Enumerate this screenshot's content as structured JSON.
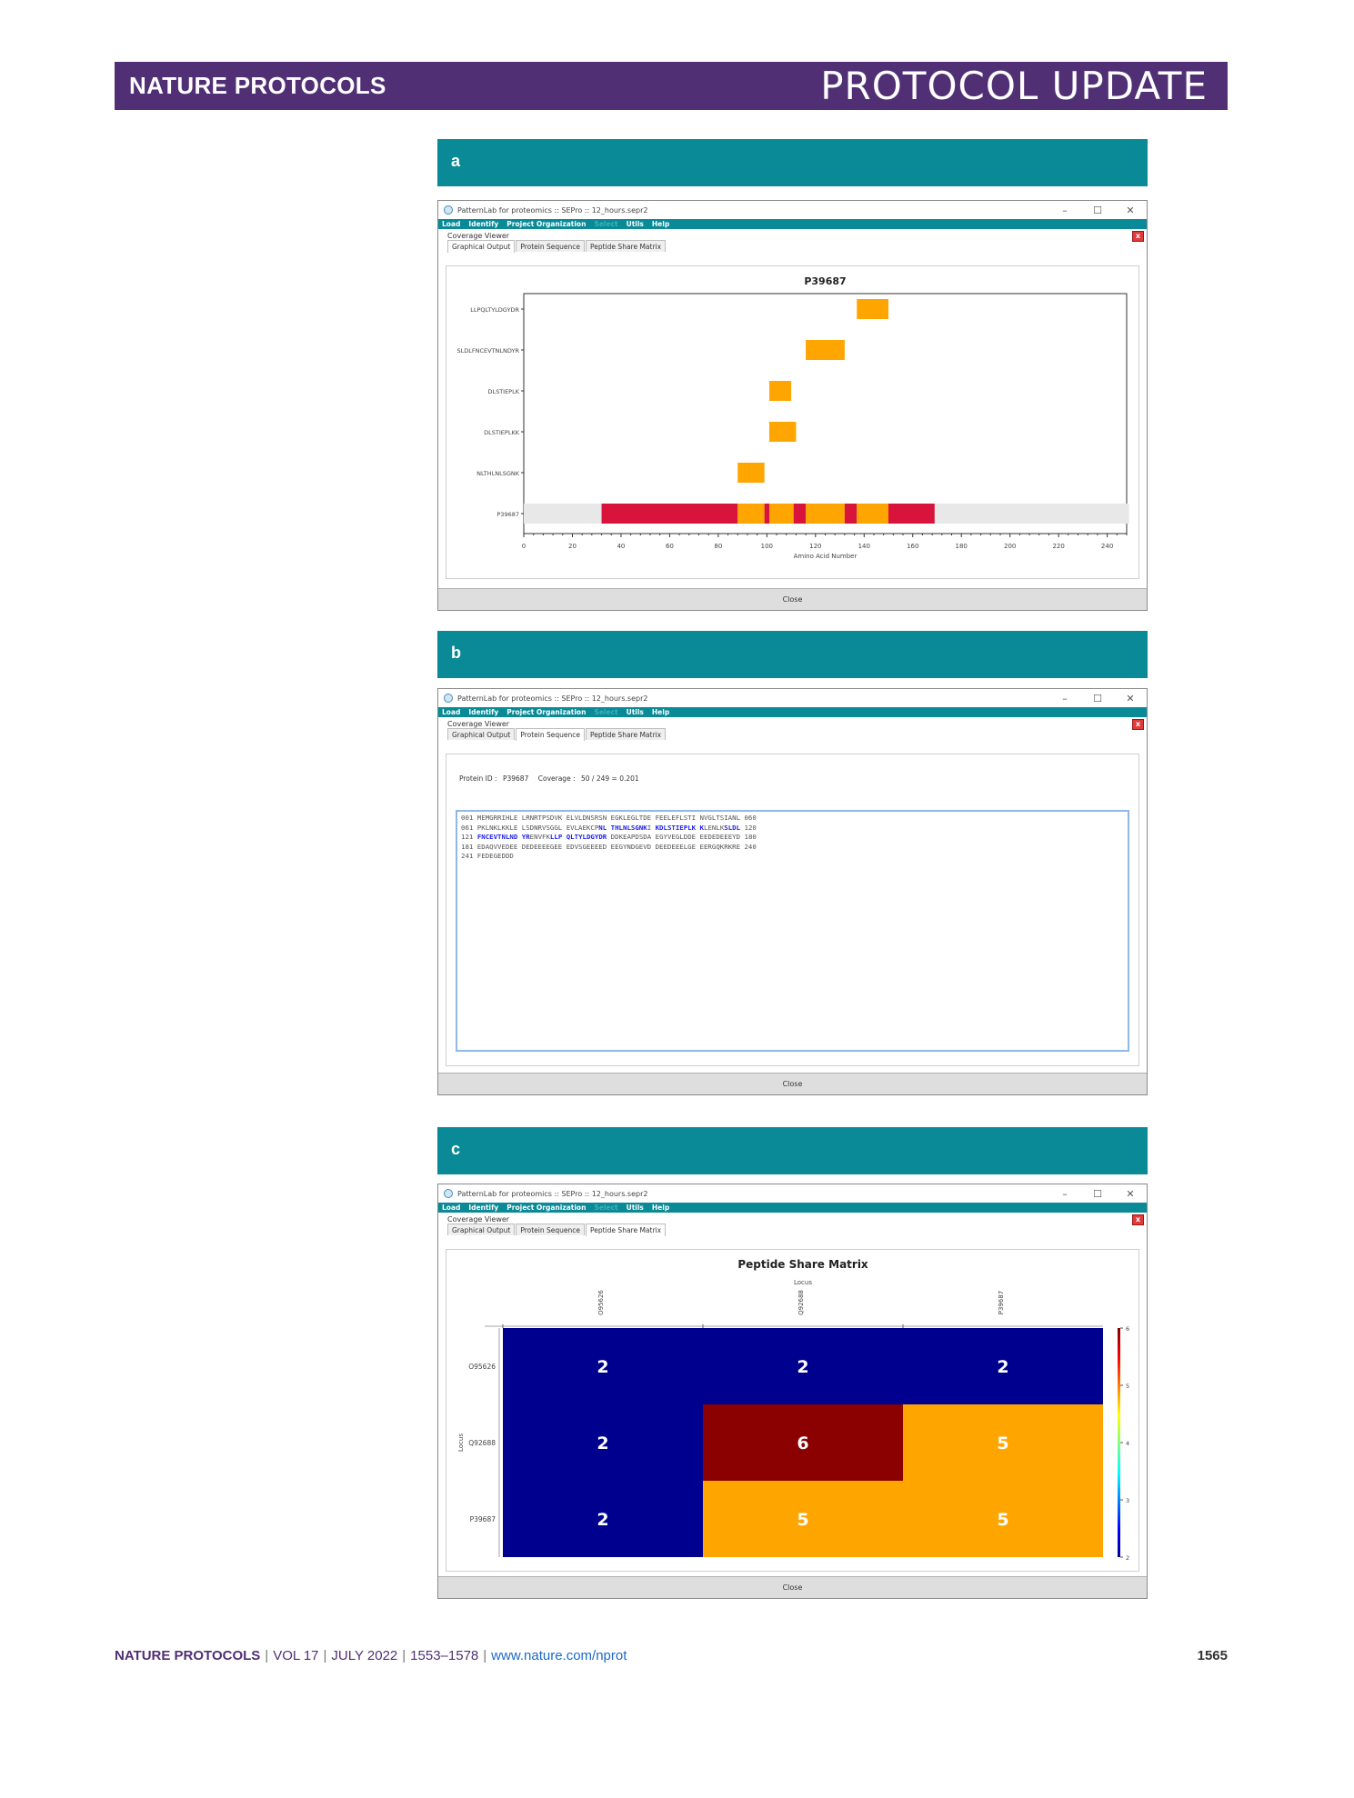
{
  "header": {
    "journal": "NATURE PROTOCOLS",
    "section": "PROTOCOL UPDATE"
  },
  "panels": [
    {
      "label": "a"
    },
    {
      "label": "b"
    },
    {
      "label": "c"
    }
  ],
  "window": {
    "title": "PatternLab for proteomics :: SEPro :: 12_hours.sepr2",
    "menu": [
      "Load",
      "Identify",
      "Project Organization",
      "Select",
      "Utils",
      "Help"
    ],
    "viewer_label": "Coverage Viewer",
    "tabs": [
      "Graphical Output",
      "Protein Sequence",
      "Peptide Share Matrix"
    ],
    "close_x": "x",
    "close_button": "Close"
  },
  "protein_sequence": {
    "protein_id_label": "Protein ID :",
    "protein_id": "P39687",
    "coverage_label": "Coverage :",
    "coverage_value": "50 / 249 = 0.201",
    "lines": [
      [
        {
          "t": "001 MEMGRRIHLE LRNRTPSDVK ELVLDNSRSN EGKLEGLTDE FEELEFLSTI NVGLTSIANL 060",
          "h": false
        }
      ],
      [
        {
          "t": "061 PKLNKLKKLE LSDNRVSGGL EVLAEKCP",
          "h": false
        },
        {
          "t": "NL THLNLSGNK",
          "h": true
        },
        {
          "t": "I ",
          "h": false
        },
        {
          "t": "KDLSTIEPLK K",
          "h": true
        },
        {
          "t": "LENLK",
          "h": false
        },
        {
          "t": "SLDL",
          "h": true
        },
        {
          "t": " 120",
          "h": false
        }
      ],
      [
        {
          "t": "121 ",
          "h": false
        },
        {
          "t": "FNCEVTNLND YR",
          "h": true
        },
        {
          "t": "ENVFK",
          "h": false
        },
        {
          "t": "LLP QLTYLDGYDR",
          "h": true
        },
        {
          "t": " DDKEAPDSDA EGYVEGLDDE EEDEDEEEYD 180",
          "h": false
        }
      ],
      [
        {
          "t": "181 EDAQVVEDEE DEDEEEEGEE EDVSGEEEED EEGYNDGEVD DEEDEEELGE EERGQKRKRE 240",
          "h": false
        }
      ],
      [
        {
          "t": "241 FEDEGEDDD",
          "h": false
        }
      ]
    ]
  },
  "chart_data": [
    {
      "type": "bar",
      "subtype": "horizontal-range",
      "title": "P39687",
      "xlabel": "Amino Acid Number",
      "ylabel": "",
      "xlim": [
        0,
        248
      ],
      "xticks": [
        0,
        20,
        40,
        60,
        80,
        100,
        120,
        140,
        160,
        180,
        200,
        220,
        240
      ],
      "categories": [
        "LLPQLTYLDGYDR",
        "SLDLFNCEVTNLNDYR",
        "DLSTIEPLK",
        "DLSTIEPLKK",
        "NLTHLNLSGNK",
        "P39687"
      ],
      "series": [
        {
          "ranges": [
            [
              137,
              150
            ]
          ]
        },
        {
          "ranges": [
            [
              116,
              132
            ]
          ]
        },
        {
          "ranges": [
            [
              101,
              110
            ]
          ]
        },
        {
          "ranges": [
            [
              101,
              112
            ]
          ]
        },
        {
          "ranges": [
            [
              88,
              99
            ]
          ]
        },
        {
          "protein_length": 249,
          "segments": [
            {
              "range": [
                32,
                88
              ],
              "color": "#d8143c"
            },
            {
              "range": [
                88,
                99
              ],
              "color": "#ffa500"
            },
            {
              "range": [
                99,
                101
              ],
              "color": "#d8143c"
            },
            {
              "range": [
                101,
                111
              ],
              "color": "#ffa500"
            },
            {
              "range": [
                111,
                116
              ],
              "color": "#d8143c"
            },
            {
              "range": [
                116,
                132
              ],
              "color": "#ffa500"
            },
            {
              "range": [
                132,
                137
              ],
              "color": "#d8143c"
            },
            {
              "range": [
                137,
                150
              ],
              "color": "#ffa500"
            },
            {
              "range": [
                150,
                169
              ],
              "color": "#d8143c"
            }
          ]
        }
      ],
      "colors": {
        "peptide": "#ffa500",
        "overlap": "#d8143c",
        "background": "#e8e8e8"
      }
    },
    {
      "type": "heatmap",
      "title": "Peptide Share Matrix",
      "xlabel": "Locus",
      "ylabel": "Locus",
      "x": [
        "O95626",
        "Q92688",
        "P39687"
      ],
      "y": [
        "O95626",
        "Q92688",
        "P39687"
      ],
      "values": [
        [
          2,
          2,
          2
        ],
        [
          2,
          6,
          5
        ],
        [
          2,
          5,
          5
        ]
      ],
      "colorbar": {
        "min": 2,
        "max": 6,
        "ticks": [
          2,
          3,
          4,
          5,
          6
        ]
      },
      "colors": {
        "2": "#00008f",
        "5": "#ffa500",
        "6": "#8b0000"
      }
    }
  ],
  "footer": {
    "journal": "NATURE PROTOCOLS",
    "volume": "VOL 17",
    "issue": "JULY 2022",
    "pages": "1553–1578",
    "url": "www.nature.com/nprot",
    "page_number": "1565"
  }
}
